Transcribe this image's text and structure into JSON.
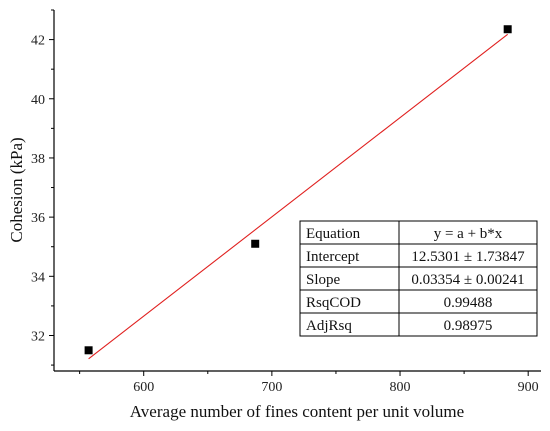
{
  "chart_data": {
    "type": "scatter",
    "xlabel": "Average number of fines content per unit volume",
    "ylabel": "Cohesion (kPa)",
    "xlim": [
      530,
      910
    ],
    "ylim": [
      30.8,
      43.0
    ],
    "xticks": [
      600,
      700,
      800,
      900
    ],
    "yticks": [
      32,
      34,
      36,
      38,
      40,
      42
    ],
    "series": [
      {
        "x": [
          557,
          687,
          884
        ],
        "y": [
          31.5,
          35.1,
          42.35
        ],
        "marker": "square",
        "color": "#000000"
      }
    ],
    "fit": {
      "x_range": [
        557,
        884
      ],
      "intercept": 12.5301,
      "slope": 0.03354,
      "color": "#e0201f"
    },
    "stats_table": {
      "position": "bottom-right",
      "rows": [
        [
          "Equation",
          "y = a + b*x"
        ],
        [
          "Intercept",
          "12.5301 ± 1.73847"
        ],
        [
          "Slope",
          "0.03354 ± 0.00241"
        ],
        [
          "RsqCOD",
          "0.99488"
        ],
        [
          "AdjRsq",
          "0.98975"
        ]
      ]
    }
  }
}
